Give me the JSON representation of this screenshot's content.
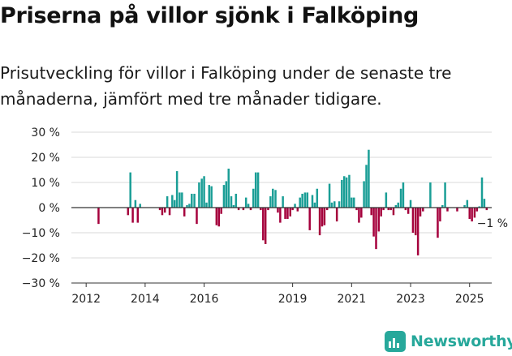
{
  "header": {
    "title": "Priserna på villor sjönk i Falköping",
    "subtitle": "Prisutveckling för villor i Falköping under de senaste tre månaderna, jämfört med tre månader tidigare."
  },
  "brand": {
    "name": "Newsworthy",
    "icon": "bar-chart-logo-icon",
    "color": "#27a89b"
  },
  "colors": {
    "positive": "#1a9e96",
    "negative": "#a5003c",
    "axis": "#333333",
    "grid": "#d9d9d9"
  },
  "chart_data": {
    "type": "bar",
    "title": "Priserna på villor sjönk i Falköping",
    "ylim": [
      -30,
      30
    ],
    "yticks": [
      30,
      20,
      10,
      0,
      -10,
      -20,
      -30
    ],
    "ytick_labels": [
      "30 %",
      "20 %",
      "10 %",
      "0 %",
      "−10 %",
      "−20 %",
      "−30 %"
    ],
    "x_range": [
      2011.5,
      2025.75
    ],
    "xticks": [
      2012,
      2014,
      2016,
      2019,
      2021,
      2023,
      2025
    ],
    "xtick_labels": [
      "2012",
      "2014",
      "2016",
      "2019",
      "2021",
      "2023",
      "2025"
    ],
    "annotation": {
      "label": "−1 %",
      "x": 2025.5,
      "y": -1
    },
    "grid": true,
    "bars": [
      {
        "x": 2012.42,
        "y": -6.5
      },
      {
        "x": 2013.42,
        "y": -3
      },
      {
        "x": 2013.5,
        "y": 14
      },
      {
        "x": 2013.58,
        "y": -6
      },
      {
        "x": 2013.67,
        "y": 3
      },
      {
        "x": 2013.75,
        "y": -6
      },
      {
        "x": 2013.83,
        "y": 1.5
      },
      {
        "x": 2014.5,
        "y": -1
      },
      {
        "x": 2014.58,
        "y": -3
      },
      {
        "x": 2014.67,
        "y": -2
      },
      {
        "x": 2014.75,
        "y": 4.5
      },
      {
        "x": 2014.83,
        "y": -3
      },
      {
        "x": 2014.92,
        "y": 5
      },
      {
        "x": 2015.0,
        "y": 3
      },
      {
        "x": 2015.08,
        "y": 14.5
      },
      {
        "x": 2015.17,
        "y": 6
      },
      {
        "x": 2015.25,
        "y": 6
      },
      {
        "x": 2015.33,
        "y": -3.5
      },
      {
        "x": 2015.42,
        "y": 1
      },
      {
        "x": 2015.5,
        "y": 1.5
      },
      {
        "x": 2015.58,
        "y": 5.5
      },
      {
        "x": 2015.67,
        "y": 5.5
      },
      {
        "x": 2015.75,
        "y": -6.5
      },
      {
        "x": 2015.83,
        "y": 10
      },
      {
        "x": 2015.92,
        "y": 11.5
      },
      {
        "x": 2016.0,
        "y": 12.5
      },
      {
        "x": 2016.08,
        "y": 2
      },
      {
        "x": 2016.17,
        "y": 9
      },
      {
        "x": 2016.25,
        "y": 8.5
      },
      {
        "x": 2016.42,
        "y": -7
      },
      {
        "x": 2016.5,
        "y": -7.5
      },
      {
        "x": 2016.58,
        "y": -2.5
      },
      {
        "x": 2016.67,
        "y": 9
      },
      {
        "x": 2016.75,
        "y": 10.5
      },
      {
        "x": 2016.83,
        "y": 15.5
      },
      {
        "x": 2016.92,
        "y": 4.5
      },
      {
        "x": 2017.0,
        "y": 1
      },
      {
        "x": 2017.08,
        "y": 5.5
      },
      {
        "x": 2017.17,
        "y": -1
      },
      {
        "x": 2017.33,
        "y": -1
      },
      {
        "x": 2017.42,
        "y": 4
      },
      {
        "x": 2017.5,
        "y": 1.5
      },
      {
        "x": 2017.58,
        "y": -1
      },
      {
        "x": 2017.67,
        "y": 7.5
      },
      {
        "x": 2017.75,
        "y": 14
      },
      {
        "x": 2017.83,
        "y": 14
      },
      {
        "x": 2017.92,
        "y": -1
      },
      {
        "x": 2018.0,
        "y": -13
      },
      {
        "x": 2018.08,
        "y": -14.5
      },
      {
        "x": 2018.17,
        "y": -1
      },
      {
        "x": 2018.25,
        "y": 4.5
      },
      {
        "x": 2018.33,
        "y": 7.5
      },
      {
        "x": 2018.42,
        "y": 7
      },
      {
        "x": 2018.5,
        "y": -2
      },
      {
        "x": 2018.58,
        "y": -6
      },
      {
        "x": 2018.67,
        "y": 4.5
      },
      {
        "x": 2018.75,
        "y": -4.5
      },
      {
        "x": 2018.83,
        "y": -4.5
      },
      {
        "x": 2018.92,
        "y": -3.5
      },
      {
        "x": 2019.0,
        "y": -1
      },
      {
        "x": 2019.08,
        "y": 1.5
      },
      {
        "x": 2019.17,
        "y": -1.5
      },
      {
        "x": 2019.25,
        "y": 4
      },
      {
        "x": 2019.33,
        "y": 5.5
      },
      {
        "x": 2019.42,
        "y": 6
      },
      {
        "x": 2019.5,
        "y": 6
      },
      {
        "x": 2019.58,
        "y": -9
      },
      {
        "x": 2019.67,
        "y": 5
      },
      {
        "x": 2019.75,
        "y": 2
      },
      {
        "x": 2019.83,
        "y": 7.5
      },
      {
        "x": 2019.92,
        "y": -11
      },
      {
        "x": 2020.0,
        "y": -7.5
      },
      {
        "x": 2020.08,
        "y": -7
      },
      {
        "x": 2020.17,
        "y": -1
      },
      {
        "x": 2020.25,
        "y": 9.5
      },
      {
        "x": 2020.33,
        "y": 2
      },
      {
        "x": 2020.42,
        "y": 2.5
      },
      {
        "x": 2020.5,
        "y": -5.5
      },
      {
        "x": 2020.58,
        "y": 2.5
      },
      {
        "x": 2020.67,
        "y": 11
      },
      {
        "x": 2020.75,
        "y": 12.5
      },
      {
        "x": 2020.83,
        "y": 12
      },
      {
        "x": 2020.92,
        "y": 13
      },
      {
        "x": 2021.0,
        "y": 4
      },
      {
        "x": 2021.08,
        "y": 4
      },
      {
        "x": 2021.17,
        "y": -1
      },
      {
        "x": 2021.25,
        "y": -6
      },
      {
        "x": 2021.33,
        "y": -4
      },
      {
        "x": 2021.42,
        "y": 10.5
      },
      {
        "x": 2021.5,
        "y": 17
      },
      {
        "x": 2021.58,
        "y": 23
      },
      {
        "x": 2021.67,
        "y": -3
      },
      {
        "x": 2021.75,
        "y": -11.5
      },
      {
        "x": 2021.83,
        "y": -16.5
      },
      {
        "x": 2021.92,
        "y": -9.5
      },
      {
        "x": 2022.0,
        "y": -3.5
      },
      {
        "x": 2022.08,
        "y": -1
      },
      {
        "x": 2022.17,
        "y": 6
      },
      {
        "x": 2022.25,
        "y": -1
      },
      {
        "x": 2022.33,
        "y": -1
      },
      {
        "x": 2022.42,
        "y": -3
      },
      {
        "x": 2022.5,
        "y": 1
      },
      {
        "x": 2022.58,
        "y": 2
      },
      {
        "x": 2022.67,
        "y": 7.5
      },
      {
        "x": 2022.75,
        "y": 10
      },
      {
        "x": 2022.83,
        "y": -1
      },
      {
        "x": 2022.92,
        "y": -2.5
      },
      {
        "x": 2023.0,
        "y": 3
      },
      {
        "x": 2023.08,
        "y": -10
      },
      {
        "x": 2023.17,
        "y": -11
      },
      {
        "x": 2023.25,
        "y": -19
      },
      {
        "x": 2023.33,
        "y": -3.5
      },
      {
        "x": 2023.42,
        "y": -1.5
      },
      {
        "x": 2023.67,
        "y": 10
      },
      {
        "x": 2023.92,
        "y": -12
      },
      {
        "x": 2024.0,
        "y": -5.5
      },
      {
        "x": 2024.08,
        "y": 1
      },
      {
        "x": 2024.17,
        "y": 10
      },
      {
        "x": 2024.25,
        "y": -1.5
      },
      {
        "x": 2024.58,
        "y": -1.5
      },
      {
        "x": 2024.83,
        "y": 1
      },
      {
        "x": 2024.92,
        "y": 3
      },
      {
        "x": 2025.0,
        "y": -4.5
      },
      {
        "x": 2025.08,
        "y": -5.5
      },
      {
        "x": 2025.17,
        "y": -4
      },
      {
        "x": 2025.25,
        "y": -1.5
      },
      {
        "x": 2025.33,
        "y": 0.5
      },
      {
        "x": 2025.42,
        "y": 12
      },
      {
        "x": 2025.5,
        "y": 3.5
      },
      {
        "x": 2025.58,
        "y": -1
      }
    ]
  }
}
